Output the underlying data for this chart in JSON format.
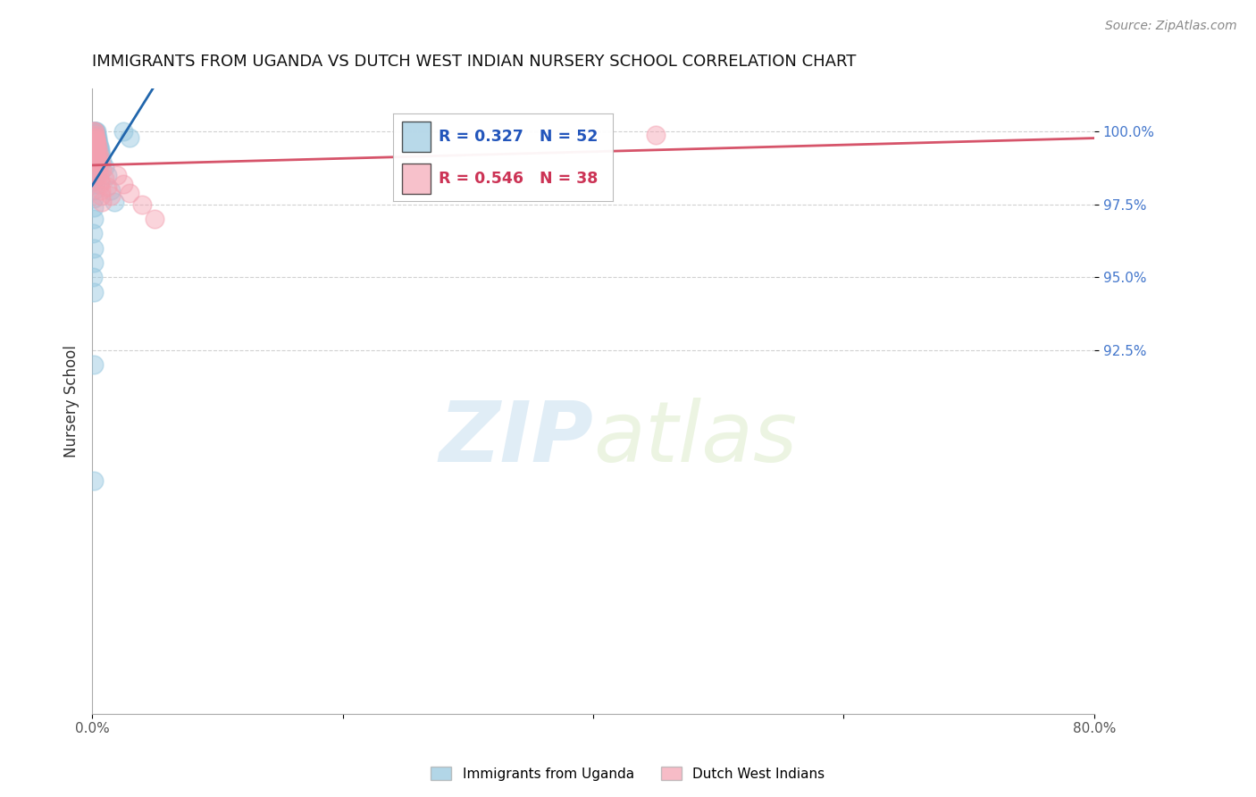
{
  "title": "IMMIGRANTS FROM UGANDA VS DUTCH WEST INDIAN NURSERY SCHOOL CORRELATION CHART",
  "source_text": "Source: ZipAtlas.com",
  "ylabel": "Nursery School",
  "xlim": [
    0.0,
    80.0
  ],
  "ylim": [
    80.0,
    101.5
  ],
  "yticks": [
    92.5,
    95.0,
    97.5,
    100.0
  ],
  "ytick_labels": [
    "92.5%",
    "95.0%",
    "97.5%",
    "100.0%"
  ],
  "xticks": [
    0.0,
    20.0,
    40.0,
    60.0,
    80.0
  ],
  "xtick_labels": [
    "0.0%",
    "",
    "",
    "",
    "80.0%"
  ],
  "blue_R": 0.327,
  "blue_N": 52,
  "pink_R": 0.546,
  "pink_N": 38,
  "blue_color": "#92c5de",
  "pink_color": "#f4a0b0",
  "blue_line_color": "#2166ac",
  "pink_line_color": "#d6546a",
  "watermark_zip": "ZIP",
  "watermark_atlas": "atlas",
  "legend_label_blue": "Immigrants from Uganda",
  "legend_label_pink": "Dutch West Indians",
  "blue_scatter_x": [
    0.15,
    0.18,
    0.2,
    0.22,
    0.25,
    0.28,
    0.3,
    0.32,
    0.35,
    0.38,
    0.4,
    0.45,
    0.5,
    0.55,
    0.6,
    0.65,
    0.7,
    0.8,
    1.0,
    1.2,
    1.5,
    1.8,
    0.12,
    0.14,
    0.16,
    0.18,
    0.2,
    0.22,
    0.24,
    0.1,
    0.12,
    0.14,
    0.16,
    0.18,
    0.2,
    0.22,
    0.1,
    0.12,
    0.08,
    0.1,
    0.12,
    0.14,
    0.1,
    0.08,
    0.1,
    0.12,
    0.08,
    0.1,
    2.5,
    3.0,
    0.1,
    0.12
  ],
  "blue_scatter_y": [
    100.0,
    100.0,
    100.0,
    100.0,
    99.9,
    100.0,
    99.9,
    100.0,
    99.9,
    99.8,
    99.8,
    99.7,
    99.6,
    99.5,
    99.4,
    99.3,
    99.2,
    99.0,
    98.8,
    98.5,
    98.0,
    97.6,
    99.8,
    99.7,
    99.6,
    99.5,
    99.3,
    99.1,
    98.9,
    99.5,
    99.3,
    99.1,
    98.8,
    98.6,
    98.4,
    98.2,
    98.9,
    98.6,
    98.3,
    98.0,
    97.7,
    97.4,
    97.0,
    96.5,
    96.0,
    95.5,
    95.0,
    94.5,
    100.0,
    99.8,
    92.0,
    88.0
  ],
  "pink_scatter_x": [
    0.15,
    0.18,
    0.2,
    0.25,
    0.3,
    0.35,
    0.4,
    0.5,
    0.6,
    0.7,
    0.8,
    1.0,
    1.2,
    1.5,
    0.2,
    0.25,
    0.3,
    0.35,
    0.4,
    0.45,
    0.5,
    0.6,
    0.7,
    0.8,
    0.2,
    0.25,
    0.3,
    0.35,
    2.0,
    2.5,
    3.0,
    4.0,
    5.0,
    45.0,
    0.4,
    0.5,
    0.6,
    0.7
  ],
  "pink_scatter_y": [
    100.0,
    100.0,
    99.9,
    99.8,
    99.7,
    99.6,
    99.5,
    99.3,
    99.1,
    98.9,
    98.7,
    98.4,
    98.1,
    97.8,
    99.8,
    99.7,
    99.5,
    99.3,
    99.1,
    98.9,
    98.7,
    98.3,
    98.0,
    97.6,
    99.6,
    99.4,
    99.2,
    99.0,
    98.5,
    98.2,
    97.9,
    97.5,
    97.0,
    99.9,
    98.8,
    98.5,
    98.2,
    97.8
  ]
}
